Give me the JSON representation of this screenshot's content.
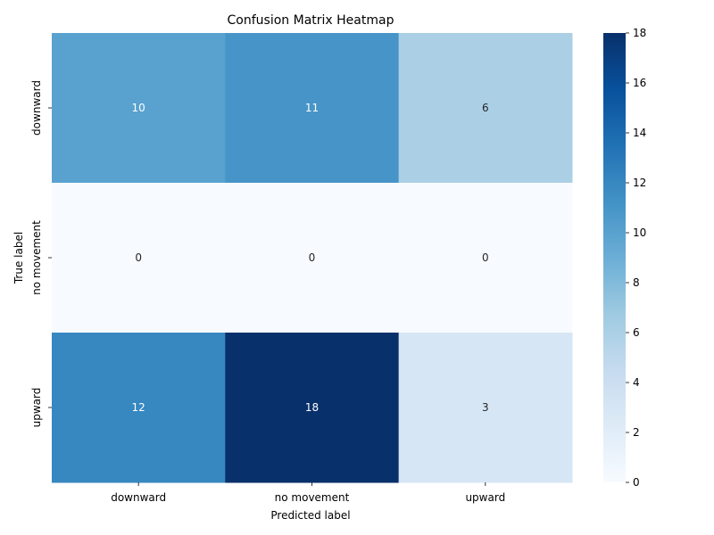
{
  "chart_data": {
    "type": "heatmap",
    "title": "Confusion Matrix Heatmap",
    "xlabel": "Predicted label",
    "ylabel": "True label",
    "x_categories": [
      "downward",
      "no movement",
      "upward"
    ],
    "y_categories": [
      "downward",
      "no movement",
      "upward"
    ],
    "values": [
      [
        10,
        11,
        6
      ],
      [
        0,
        0,
        0
      ],
      [
        12,
        18,
        3
      ]
    ],
    "colormap": "Blues",
    "color_range": [
      0,
      18
    ],
    "colorbar_ticks": [
      0,
      2,
      4,
      6,
      8,
      10,
      12,
      14,
      16,
      18
    ],
    "annotate_cells": true,
    "grid": false,
    "colors": {
      "min": "#f7fbff",
      "max": "#08306b",
      "text_on_dark": "#ffffff",
      "text_on_light": "#262626"
    }
  }
}
